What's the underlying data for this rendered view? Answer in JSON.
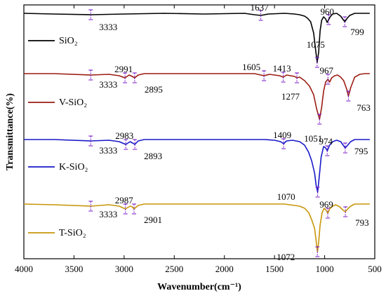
{
  "chart_data": {
    "type": "line",
    "title": "",
    "xlabel": "Wavenumber(cm⁻¹)",
    "ylabel": "Transmittance(%)",
    "xlim": [
      4000,
      500
    ],
    "x_reversed": true,
    "x_ticks": [
      4000,
      3500,
      3000,
      2500,
      2000,
      1500,
      1000,
      500
    ],
    "y_ticks_shown": false,
    "grid": false,
    "legend": "inline-per-series",
    "series": [
      {
        "name": "SiO₂",
        "color": "#000000",
        "baseline": 0,
        "x": [
          4000,
          3700,
          3333,
          3000,
          2600,
          2200,
          1800,
          1700,
          1637,
          1560,
          1400,
          1300,
          1250,
          1200,
          1170,
          1140,
          1110,
          1090,
          1075,
          1060,
          1045,
          1030,
          1010,
          990,
          975,
          960,
          945,
          920,
          880,
          840,
          815,
          799,
          780,
          750,
          700,
          600,
          550
        ],
        "y": [
          0,
          -1,
          -2,
          -1,
          0,
          -1,
          0,
          -2,
          -3,
          -1,
          0,
          -1,
          -2,
          -4,
          -7,
          -12,
          -28,
          -52,
          -70,
          -56,
          -25,
          -10,
          -5,
          -8,
          -13,
          -9,
          -5,
          -1,
          0,
          -4,
          -9,
          -12,
          -8,
          -3,
          0,
          0,
          0
        ]
      },
      {
        "name": "V-SiO₂",
        "color": "#9b1c12",
        "baseline": 0,
        "x": [
          4000,
          3700,
          3333,
          3150,
          3050,
          2991,
          2950,
          2920,
          2895,
          2860,
          2800,
          2400,
          2000,
          1700,
          1605,
          1550,
          1450,
          1413,
          1380,
          1300,
          1277,
          1250,
          1200,
          1150,
          1110,
          1080,
          1051,
          1030,
          1010,
          990,
          967,
          950,
          930,
          900,
          870,
          840,
          810,
          780,
          763,
          740,
          700,
          650,
          600,
          550
        ],
        "y": [
          0,
          0,
          -2,
          -1,
          -3,
          -6,
          -2,
          -4,
          -6,
          -2,
          0,
          0,
          0,
          0,
          -3,
          -1,
          -3,
          -5,
          -2,
          -4,
          -6,
          -5,
          -10,
          -18,
          -30,
          -50,
          -65,
          -48,
          -25,
          -12,
          -8,
          -12,
          -6,
          -3,
          -2,
          -5,
          -10,
          -22,
          -32,
          -20,
          -5,
          -1,
          0,
          0
        ]
      },
      {
        "name": "K-SiO₂",
        "color": "#1818c8",
        "baseline": 0,
        "x": [
          4000,
          3700,
          3333,
          3150,
          3050,
          2983,
          2940,
          2915,
          2893,
          2860,
          2800,
          2400,
          2000,
          1600,
          1500,
          1440,
          1409,
          1380,
          1320,
          1250,
          1200,
          1160,
          1130,
          1100,
          1085,
          1070,
          1055,
          1035,
          1010,
          990,
          974,
          950,
          920,
          880,
          840,
          810,
          795,
          770,
          740,
          700,
          600,
          550
        ],
        "y": [
          0,
          0,
          -2,
          -1,
          -3,
          -7,
          -3,
          -5,
          -7,
          -2,
          0,
          0,
          0,
          0,
          -1,
          -3,
          -6,
          -2,
          -1,
          -3,
          -8,
          -18,
          -30,
          -48,
          -65,
          -75,
          -55,
          -25,
          -10,
          -12,
          -16,
          -8,
          -3,
          -1,
          -3,
          -9,
          -12,
          -8,
          -3,
          0,
          0,
          0
        ]
      },
      {
        "name": "T-SiO₂",
        "color": "#c8960a",
        "baseline": 0,
        "x": [
          4000,
          3700,
          3333,
          3150,
          3050,
          2987,
          2940,
          2920,
          2901,
          2860,
          2800,
          2400,
          2000,
          1600,
          1400,
          1300,
          1250,
          1200,
          1160,
          1130,
          1100,
          1085,
          1072,
          1060,
          1045,
          1025,
          1005,
          985,
          969,
          950,
          920,
          890,
          850,
          815,
          793,
          770,
          740,
          700,
          600,
          550
        ],
        "y": [
          0,
          -1,
          -3,
          -1,
          -3,
          -7,
          -3,
          -4,
          -7,
          -2,
          0,
          0,
          0,
          0,
          0,
          -2,
          -3,
          -6,
          -12,
          -22,
          -35,
          -52,
          -68,
          -55,
          -30,
          -12,
          -6,
          -9,
          -13,
          -7,
          -3,
          -1,
          -4,
          -9,
          -11,
          -7,
          -3,
          0,
          0,
          0
        ]
      }
    ],
    "annotations": [
      {
        "series": 0,
        "label": "3333",
        "x": 3333
      },
      {
        "series": 0,
        "label": "1637",
        "x": 1637
      },
      {
        "series": 0,
        "label": "960",
        "x": 960
      },
      {
        "series": 0,
        "label": "1075",
        "x": 1075
      },
      {
        "series": 0,
        "label": "799",
        "x": 799
      },
      {
        "series": 1,
        "label": "3333",
        "x": 3333
      },
      {
        "series": 1,
        "label": "2991",
        "x": 2991
      },
      {
        "series": 1,
        "label": "2895",
        "x": 2895
      },
      {
        "series": 1,
        "label": "1605",
        "x": 1605
      },
      {
        "series": 1,
        "label": "1413",
        "x": 1413
      },
      {
        "series": 1,
        "label": "1277",
        "x": 1277
      },
      {
        "series": 1,
        "label": "967",
        "x": 967
      },
      {
        "series": 1,
        "label": "1051",
        "x": 1051
      },
      {
        "series": 1,
        "label": "763",
        "x": 763
      },
      {
        "series": 2,
        "label": "3333",
        "x": 3333
      },
      {
        "series": 2,
        "label": "2983",
        "x": 2983
      },
      {
        "series": 2,
        "label": "2893",
        "x": 2893
      },
      {
        "series": 2,
        "label": "1409",
        "x": 1409
      },
      {
        "series": 2,
        "label": "974",
        "x": 974
      },
      {
        "series": 2,
        "label": "1070",
        "x": 1070
      },
      {
        "series": 2,
        "label": "795",
        "x": 795
      },
      {
        "series": 3,
        "label": "3333",
        "x": 3333
      },
      {
        "series": 3,
        "label": "2987",
        "x": 2987
      },
      {
        "series": 3,
        "label": "2901",
        "x": 2901
      },
      {
        "series": 3,
        "label": "969",
        "x": 969
      },
      {
        "series": 3,
        "label": "1072",
        "x": 1072
      },
      {
        "series": 3,
        "label": "793",
        "x": 793
      }
    ]
  },
  "marker_color": "#7d22c8"
}
